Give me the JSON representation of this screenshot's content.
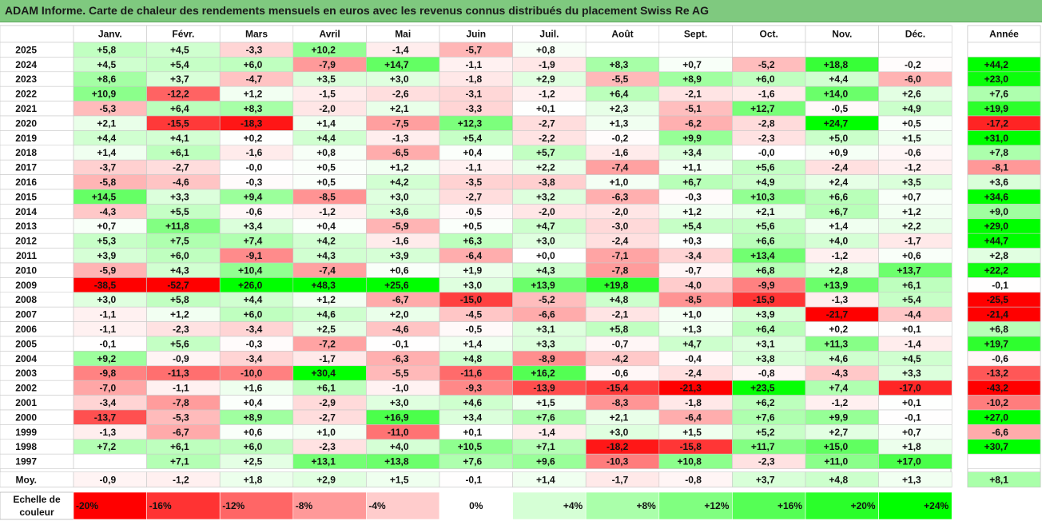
{
  "title": "ADAM Informe. Carte de chaleur des rendements mensuels en euros avec les revenus connus distribués du placement Swiss Re AG",
  "colors": {
    "neg_strong": "#ff0000",
    "zero": "#ffffff",
    "pos_strong": "#00ff00",
    "title_bg": "#7fc97f"
  },
  "chart_data": {
    "type": "heatmap",
    "title": "ADAM Informe. Carte de chaleur des rendements mensuels en euros avec les revenus connus distribués du placement Swiss Re AG",
    "months": [
      "Janv.",
      "Févr.",
      "Mars",
      "Avril",
      "Mai",
      "Juin",
      "Juil.",
      "Août",
      "Sept.",
      "Oct.",
      "Nov.",
      "Déc."
    ],
    "year_header": "Année",
    "avg_label": "Moy.",
    "rows": [
      {
        "year": "2025",
        "m": [
          "+5,8",
          "+4,5",
          "-3,3",
          "+10,2",
          "-1,4",
          "-5,7",
          "+0,8",
          "",
          "",
          "",
          "",
          ""
        ],
        "annual": ""
      },
      {
        "year": "2024",
        "m": [
          "+4,5",
          "+5,4",
          "+6,0",
          "-7,9",
          "+14,7",
          "-1,1",
          "-1,9",
          "+8,3",
          "+0,7",
          "-5,2",
          "+18,8",
          "-0,2"
        ],
        "annual": "+44,2"
      },
      {
        "year": "2023",
        "m": [
          "+8,6",
          "+3,7",
          "-4,7",
          "+3,5",
          "+3,0",
          "-1,8",
          "+2,9",
          "-5,5",
          "+8,9",
          "+6,0",
          "+4,4",
          "-6,0"
        ],
        "annual": "+23,0"
      },
      {
        "year": "2022",
        "m": [
          "+10,9",
          "-12,2",
          "+1,2",
          "-1,5",
          "-2,6",
          "-3,1",
          "-1,2",
          "+6,4",
          "-2,1",
          "-1,6",
          "+14,0",
          "+2,6"
        ],
        "annual": "+7,6"
      },
      {
        "year": "2021",
        "m": [
          "-5,3",
          "+6,4",
          "+8,3",
          "-2,0",
          "+2,1",
          "-3,3",
          "+0,1",
          "+2,3",
          "-5,1",
          "+12,7",
          "-0,5",
          "+4,9"
        ],
        "annual": "+19,9"
      },
      {
        "year": "2020",
        "m": [
          "+2,1",
          "-15,5",
          "-18,3",
          "+1,4",
          "-7,5",
          "+12,3",
          "-2,7",
          "+1,3",
          "-6,2",
          "-2,8",
          "+24,7",
          "+0,5"
        ],
        "annual": "-17,2"
      },
      {
        "year": "2019",
        "m": [
          "+4,4",
          "+4,1",
          "+0,2",
          "+4,4",
          "-1,3",
          "+5,4",
          "-2,2",
          "-0,2",
          "+9,9",
          "-2,3",
          "+5,0",
          "+1,5"
        ],
        "annual": "+31,0"
      },
      {
        "year": "2018",
        "m": [
          "+1,4",
          "+6,1",
          "-1,6",
          "+0,8",
          "-6,5",
          "+0,4",
          "+5,7",
          "-1,6",
          "+3,4",
          "-0,0",
          "+0,9",
          "-0,6"
        ],
        "annual": "+7,8"
      },
      {
        "year": "2017",
        "m": [
          "-3,7",
          "-2,7",
          "-0,0",
          "+0,5",
          "+1,2",
          "-1,1",
          "+2,2",
          "-7,4",
          "+1,1",
          "+5,6",
          "-2,4",
          "-1,2"
        ],
        "annual": "-8,1"
      },
      {
        "year": "2016",
        "m": [
          "-5,8",
          "-4,6",
          "-0,3",
          "+0,5",
          "+4,2",
          "-3,5",
          "-3,8",
          "+1,0",
          "+6,7",
          "+4,9",
          "+2,4",
          "+3,5"
        ],
        "annual": "+3,6"
      },
      {
        "year": "2015",
        "m": [
          "+14,5",
          "+3,3",
          "+9,4",
          "-8,5",
          "+3,0",
          "-2,7",
          "+3,2",
          "-6,3",
          "-0,3",
          "+10,3",
          "+6,6",
          "+0,7"
        ],
        "annual": "+34,6"
      },
      {
        "year": "2014",
        "m": [
          "-4,3",
          "+5,5",
          "-0,6",
          "-1,2",
          "+3,6",
          "-0,5",
          "-2,0",
          "-2,0",
          "+1,2",
          "+2,1",
          "+6,7",
          "+1,2"
        ],
        "annual": "+9,0"
      },
      {
        "year": "2013",
        "m": [
          "+0,7",
          "+11,8",
          "+3,4",
          "+0,4",
          "-5,9",
          "+0,5",
          "+4,7",
          "-3,0",
          "+5,4",
          "+5,6",
          "+1,4",
          "+2,2"
        ],
        "annual": "+29,0"
      },
      {
        "year": "2012",
        "m": [
          "+5,3",
          "+7,5",
          "+7,4",
          "+4,2",
          "-1,6",
          "+6,3",
          "+3,0",
          "-2,4",
          "+0,3",
          "+6,6",
          "+4,0",
          "-1,7"
        ],
        "annual": "+44,7"
      },
      {
        "year": "2011",
        "m": [
          "+3,9",
          "+6,0",
          "-9,1",
          "+4,3",
          "+3,9",
          "-6,4",
          "+0,0",
          "-7,1",
          "-3,4",
          "+13,4",
          "-1,2",
          "+0,6"
        ],
        "annual": "+2,8"
      },
      {
        "year": "2010",
        "m": [
          "-5,9",
          "+4,3",
          "+10,4",
          "-7,4",
          "+0,6",
          "+1,9",
          "+4,3",
          "-7,8",
          "-0,7",
          "+6,8",
          "+2,8",
          "+13,7"
        ],
        "annual": "+22,2"
      },
      {
        "year": "2009",
        "m": [
          "-38,5",
          "-52,7",
          "+26,0",
          "+48,3",
          "+25,6",
          "+3,0",
          "+13,9",
          "+19,8",
          "-4,0",
          "-9,9",
          "+13,9",
          "+6,1"
        ],
        "annual": "-0,1"
      },
      {
        "year": "2008",
        "m": [
          "+3,0",
          "+5,8",
          "+4,4",
          "+1,2",
          "-6,7",
          "-15,0",
          "-5,2",
          "+4,8",
          "-8,5",
          "-15,9",
          "-1,3",
          "+5,4"
        ],
        "annual": "-25,5"
      },
      {
        "year": "2007",
        "m": [
          "-1,1",
          "+1,2",
          "+6,0",
          "+4,6",
          "+2,0",
          "-4,5",
          "-6,6",
          "-2,1",
          "+1,0",
          "+3,9",
          "-21,7",
          "-4,4"
        ],
        "annual": "-21,4"
      },
      {
        "year": "2006",
        "m": [
          "-1,1",
          "-2,3",
          "-3,4",
          "+2,5",
          "-4,6",
          "-0,5",
          "+3,1",
          "+5,8",
          "+1,3",
          "+6,4",
          "+0,2",
          "+0,1"
        ],
        "annual": "+6,8"
      },
      {
        "year": "2005",
        "m": [
          "-0,1",
          "+5,6",
          "-0,3",
          "-7,2",
          "-0,1",
          "+1,4",
          "+3,3",
          "-0,7",
          "+4,7",
          "+3,1",
          "+11,3",
          "-1,4"
        ],
        "annual": "+19,7"
      },
      {
        "year": "2004",
        "m": [
          "+9,2",
          "-0,9",
          "-3,4",
          "-1,7",
          "-6,3",
          "+4,8",
          "-8,9",
          "-4,2",
          "-0,4",
          "+3,8",
          "+4,6",
          "+4,5"
        ],
        "annual": "-0,6"
      },
      {
        "year": "2003",
        "m": [
          "-9,8",
          "-11,3",
          "-10,0",
          "+30,4",
          "-5,5",
          "-11,6",
          "+16,2",
          "-0,6",
          "-2,4",
          "-0,8",
          "-4,3",
          "+3,3"
        ],
        "annual": "-13,2"
      },
      {
        "year": "2002",
        "m": [
          "-7,0",
          "-1,1",
          "+1,6",
          "+6,1",
          "-1,0",
          "-9,3",
          "-13,9",
          "-15,4",
          "-21,3",
          "+23,5",
          "+7,4",
          "-17,0"
        ],
        "annual": "-43,2"
      },
      {
        "year": "2001",
        "m": [
          "-3,4",
          "-7,8",
          "+0,4",
          "-2,9",
          "+3,0",
          "+4,6",
          "+1,5",
          "-8,3",
          "-1,8",
          "+6,2",
          "-1,2",
          "+0,1"
        ],
        "annual": "-10,2"
      },
      {
        "year": "2000",
        "m": [
          "-13,7",
          "-5,3",
          "+8,9",
          "-2,7",
          "+16,9",
          "+3,4",
          "+7,6",
          "+2,1",
          "-6,4",
          "+7,6",
          "+9,9",
          "-0,1"
        ],
        "annual": "+27,0"
      },
      {
        "year": "1999",
        "m": [
          "-1,3",
          "-6,7",
          "+0,6",
          "+1,0",
          "-11,0",
          "+0,1",
          "-1,4",
          "+3,0",
          "+1,5",
          "+5,2",
          "+2,7",
          "+0,7"
        ],
        "annual": "-6,6"
      },
      {
        "year": "1998",
        "m": [
          "+7,2",
          "+6,1",
          "+6,0",
          "-2,3",
          "+4,0",
          "+10,5",
          "+7,1",
          "-18,2",
          "-15,8",
          "+11,7",
          "+15,0",
          "+1,8"
        ],
        "annual": "+30,7"
      },
      {
        "year": "1997",
        "m": [
          "",
          "+7,1",
          "+2,5",
          "+13,1",
          "+13,8",
          "+7,6",
          "+9,6",
          "-10,3",
          "+10,8",
          "-2,3",
          "+11,0",
          "+17,0"
        ],
        "annual": ""
      }
    ],
    "averages": [
      "-0,9",
      "-1,2",
      "+1,8",
      "+2,9",
      "+1,5",
      "-0,1",
      "+1,4",
      "-1,7",
      "-0,8",
      "+3,7",
      "+4,8",
      "+1,3"
    ],
    "avg_annual": "+8,1",
    "scale_label": [
      "Echelle de",
      "couleur"
    ],
    "scale": [
      "-20%",
      "-16%",
      "-12%",
      "-8%",
      "-4%",
      "0%",
      "+4%",
      "+8%",
      "+12%",
      "+16%",
      "+20%",
      "+24%"
    ]
  }
}
